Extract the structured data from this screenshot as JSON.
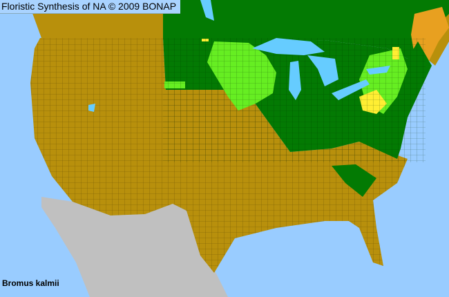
{
  "header": {
    "title": "Floristic Synthesis of NA © 2009 BONAP"
  },
  "map": {
    "species": "Bromus kalmii",
    "colors": {
      "water": "#99ccff",
      "absent_state": "#b8900c",
      "present_state": "#037a03",
      "present_county": "#66ee22",
      "rare_county": "#ffee33",
      "not_mapped": "#c0c0c0",
      "county_lines": "#4a3800"
    }
  }
}
